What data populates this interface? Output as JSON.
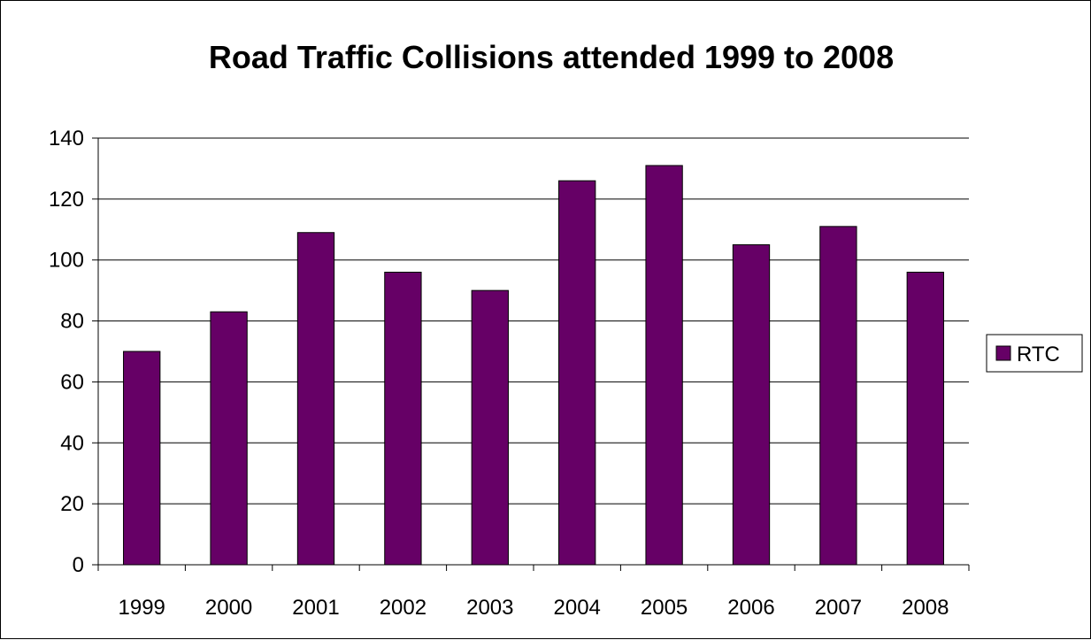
{
  "chart_data": {
    "type": "bar",
    "title": "Road Traffic Collisions attended 1999 to 2008",
    "xlabel": "",
    "ylabel": "",
    "categories": [
      "1999",
      "2000",
      "2001",
      "2002",
      "2003",
      "2004",
      "2005",
      "2006",
      "2007",
      "2008"
    ],
    "series": [
      {
        "name": "RTC",
        "values": [
          70,
          83,
          109,
          96,
          90,
          126,
          131,
          105,
          111,
          96
        ],
        "color": "#660066"
      }
    ],
    "ylim": [
      0,
      140
    ],
    "yticks": [
      "0",
      "20",
      "40",
      "60",
      "80",
      "100",
      "120",
      "140"
    ],
    "grid": "horizontal",
    "legend_position": "right",
    "plot_background": "#ffffff"
  }
}
